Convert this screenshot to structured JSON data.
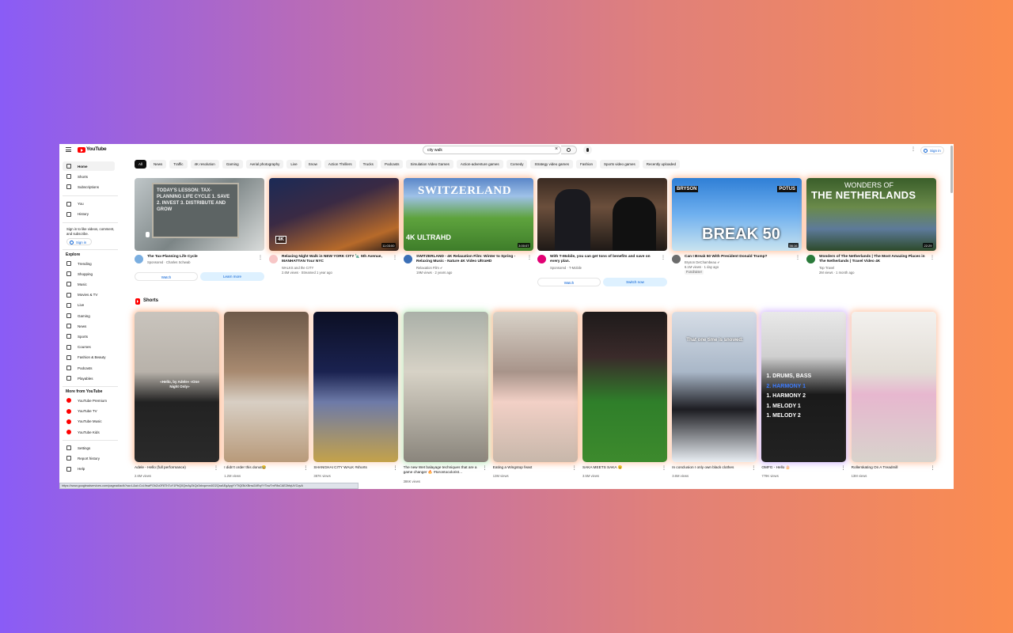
{
  "header": {
    "logo": "YouTube",
    "search_value": "city walk",
    "signin": "Sign in"
  },
  "sidebar": {
    "main": [
      {
        "label": "Home",
        "icon": "home-icon"
      },
      {
        "label": "Shorts",
        "icon": "shorts-icon"
      },
      {
        "label": "Subscriptions",
        "icon": "subscriptions-icon"
      }
    ],
    "you": [
      {
        "label": "You",
        "icon": "you-icon"
      },
      {
        "label": "History",
        "icon": "history-icon"
      }
    ],
    "note": "Sign in to like videos, comment, and subscribe.",
    "signin": "Sign in",
    "explore_heading": "Explore",
    "explore": [
      {
        "label": "Trending"
      },
      {
        "label": "Shopping"
      },
      {
        "label": "Music"
      },
      {
        "label": "Movies & TV"
      },
      {
        "label": "Live"
      },
      {
        "label": "Gaming"
      },
      {
        "label": "News"
      },
      {
        "label": "Sports"
      },
      {
        "label": "Courses"
      },
      {
        "label": "Fashion & Beauty"
      },
      {
        "label": "Podcasts"
      },
      {
        "label": "Playables"
      }
    ],
    "more_heading": "More from YouTube",
    "more": [
      {
        "label": "YouTube Premium"
      },
      {
        "label": "YouTube TV"
      },
      {
        "label": "YouTube Music"
      },
      {
        "label": "YouTube Kids"
      }
    ],
    "bottom": [
      {
        "label": "Settings"
      },
      {
        "label": "Report history"
      },
      {
        "label": "Help"
      }
    ]
  },
  "chips": [
    "All",
    "News",
    "Traffic",
    "4K resolution",
    "Gaming",
    "Aerial photography",
    "Live",
    "Snow",
    "Action Thrillers",
    "Trucks",
    "Podcasts",
    "Simulation Video Games",
    "Action-adventure games",
    "Comedy",
    "Strategy video games",
    "Fashion",
    "Sports video games",
    "Recently uploaded"
  ],
  "videos": [
    {
      "title": "The Tax-Planning Life Cycle",
      "meta1": "Sponsored · Charles Schwab",
      "meta2": "",
      "duration": "",
      "buttons": [
        "Watch",
        "Learn more"
      ],
      "thumb_text": "TODAY'S LESSON: TAX-PLANNING LIFE CYCLE  1. SAVE 2. INVEST 3. DISTRIBUTE  AND GROW"
    },
    {
      "title": "Relaxing Night Walk in NEW YORK CITY 🗽 5th Avenue, MANHATTAN Tour NYC",
      "meta1": "WALKS and the CITY",
      "meta2": "2.6M views · Streamed 1 year ago",
      "duration": "11:03:00",
      "badge": "4K"
    },
    {
      "title": "SWITZERLAND - 4K Relaxation Film: Winter to Spring - Relaxing Music - Nature 4K Video UltraHD",
      "meta1": "Relaxation Film ✔",
      "meta2": "19M views · 2 years ago",
      "duration": "3:00:07",
      "thumb_text": "SWITZERLAND",
      "thumb_sub": "4K ULTRAHD"
    },
    {
      "title": "With T-Mobile, you can get tons of benefits and save on every plan.",
      "meta1": "Sponsored · T-Mobile",
      "meta2": "",
      "duration": "",
      "buttons": [
        "Watch",
        "Switch now"
      ]
    },
    {
      "title": "Can I Break 50 With President Donald Trump?",
      "meta1": "Bryson DeChambeau ✔",
      "meta2": "6.1M views · 1 day ago",
      "tag": "Fundraiser",
      "duration": "56:16",
      "thumb_left": "BRYSON",
      "thumb_right": "POTUS",
      "thumb_big": "BREAK 50"
    },
    {
      "title": "Wonders of The Netherlands | The Most Amazing Places in The Netherlands | Travel Video 4K",
      "meta1": "Top Travel",
      "meta2": "2M views · 1 month ago",
      "duration": "22:29",
      "thumb_small": "WONDERS OF",
      "thumb_big": "THE NETHERLANDS"
    }
  ],
  "shorts_heading": "Shorts",
  "shorts": [
    {
      "title": "Adele - Hello (full performance)",
      "views": "2.6M views",
      "overlay": "«Hello, by Adele» «One Night Only»"
    },
    {
      "title": "I didn't order this donut😂",
      "views": "1.2M views"
    },
    {
      "title": "SHANGHAI CITY WALK #shorts",
      "views": "387K views"
    },
    {
      "title": "The new Wet balayage techniques that are a game changer 🔥 #torontocolorist…",
      "views": "386K views"
    },
    {
      "title": "Eating a Wingstop feast",
      "views": "13M views"
    },
    {
      "title": "SAKA MEETS SAKA 😮",
      "views": "3.5M views"
    },
    {
      "title": "In conclusion I only own black clothes",
      "views": "3.6M views",
      "overlay": "That one time is snowed:"
    },
    {
      "title": "OMFG - Hello 🎂",
      "views": "779K views",
      "overlay_lines": [
        "1. DRUMS, BASS",
        "2. HARMONY 1",
        "1. HARMONY 2",
        "1. MELODY 1",
        "1. MELODY 2"
      ]
    },
    {
      "title": "Rollerskating On A Treadmill",
      "views": "13M views"
    }
  ],
  "status_url": "https://www.googleadservices.com/pagead/aclk?sa=L&ai=CcL9swPOhZo0F8ThTuY1PbQ0QmAy2kQz3xbqcmn4iO2QraAEgAygYYTtQf3kXBnw2ARqYYTcwTmF8sCAE2bfqUVCqvA"
}
